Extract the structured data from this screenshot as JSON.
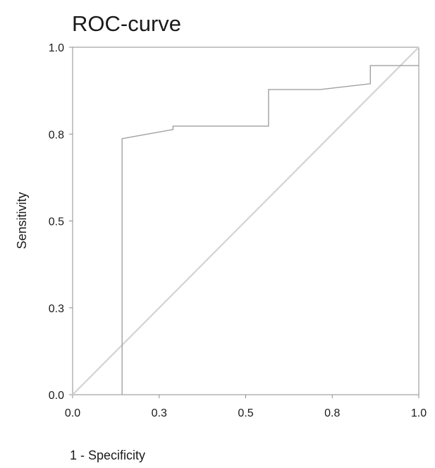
{
  "chart_data": {
    "type": "line",
    "title": "ROC-curve",
    "xlabel": "1 - Specificity",
    "ylabel": "Sensitivity",
    "xlim": [
      0,
      1
    ],
    "ylim": [
      0,
      1
    ],
    "x_ticks": [
      0.0,
      0.25,
      0.5,
      0.75,
      1.0
    ],
    "x_tick_labels": [
      "0.0",
      "0.3",
      "0.5",
      "0.8",
      "1.0"
    ],
    "y_ticks": [
      0.0,
      0.25,
      0.5,
      0.75,
      1.0
    ],
    "y_tick_labels": [
      "0.0",
      "0.3",
      "0.5",
      "0.8",
      "1.0"
    ],
    "grid": false,
    "series": [
      {
        "color": "#a0a0a0",
        "x": [
          0.143,
          0.143,
          0.29,
          0.29,
          0.566,
          0.566,
          0.714,
          0.86,
          0.86,
          1.0
        ],
        "y": [
          0.0,
          0.737,
          0.763,
          0.773,
          0.773,
          0.878,
          0.878,
          0.895,
          0.947,
          0.947
        ]
      },
      {
        "color": "#d3d3d3",
        "x": [
          0,
          1
        ],
        "y": [
          0,
          1
        ]
      }
    ]
  }
}
